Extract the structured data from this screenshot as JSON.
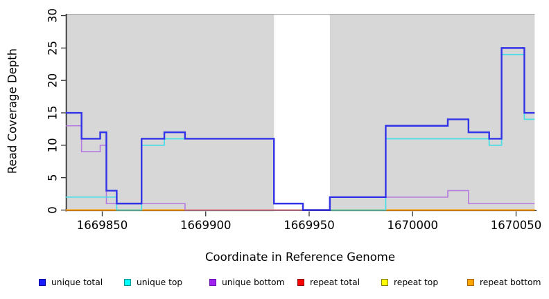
{
  "figure": {
    "x_axis_title": "Coordinate in Reference Genome",
    "y_axis_title": "Read Coverage Depth"
  },
  "chart_data": {
    "type": "line",
    "subtype": "step-coverage-plot",
    "title": "",
    "xlabel": "Coordinate in Reference Genome",
    "ylabel": "Read Coverage Depth",
    "xlim": [
      1669832,
      1670060
    ],
    "ylim": [
      0,
      30
    ],
    "xticks": [
      1669850,
      1669900,
      1669950,
      1670000,
      1670050
    ],
    "yticks": [
      0,
      5,
      10,
      15,
      20,
      25,
      30
    ],
    "grid": false,
    "legend_position": "bottom",
    "panel_color": "#D7D7D7",
    "background_regions": [
      {
        "from": 1669832,
        "to": 1669933,
        "color": "#D7D7D7"
      },
      {
        "from": 1669960,
        "to": 1670059,
        "color": "#D7D7D7"
      }
    ],
    "gap_region": {
      "from": 1669933,
      "to": 1669960,
      "color": "#FFFFFF"
    },
    "x_breaks": [
      1669832,
      1669840,
      1669849,
      1669852,
      1669857,
      1669869,
      1669880,
      1669890,
      1669933,
      1669947,
      1669960,
      1669987,
      1670017,
      1670027,
      1670037,
      1670043,
      1670054,
      1670059
    ],
    "series": [
      {
        "name": "unique total",
        "color": "#3232E8",
        "legend_fill": "#1A1AFF",
        "legend_border": "#000099",
        "values": [
          15,
          11,
          12,
          3,
          1,
          11,
          12,
          11,
          1,
          0,
          2,
          13,
          14,
          12,
          11,
          25,
          15
        ]
      },
      {
        "name": "unique top",
        "color": "#4ADEE6",
        "legend_fill": "#00FFFF",
        "legend_border": "#0E8F8F",
        "values": [
          2,
          2,
          2,
          2,
          0,
          10,
          11,
          11,
          1,
          0,
          0,
          11,
          11,
          11,
          10,
          24,
          14
        ]
      },
      {
        "name": "unique bottom",
        "color": "#B679DF",
        "legend_fill": "#A020F0",
        "legend_border": "#6A0AAE",
        "values": [
          13,
          9,
          10,
          1,
          1,
          1,
          1,
          0,
          0,
          0,
          2,
          2,
          3,
          1,
          1,
          1,
          1
        ]
      },
      {
        "name": "repeat total",
        "color": "#CC2222",
        "legend_fill": "#FF0000",
        "legend_border": "#8B0000",
        "values": [
          0,
          0,
          0,
          0,
          0,
          0,
          0,
          0,
          0,
          0,
          0,
          0,
          0,
          0,
          0,
          0,
          0
        ]
      },
      {
        "name": "repeat top",
        "color": "#F5F500",
        "legend_fill": "#FFFF00",
        "legend_border": "#857F00",
        "values": [
          0,
          0,
          0,
          0,
          0,
          0,
          0,
          0,
          0,
          0,
          0,
          0,
          0,
          0,
          0,
          0,
          0
        ]
      },
      {
        "name": "repeat bottom",
        "color": "#FF9D12",
        "legend_fill": "#FFA500",
        "legend_border": "#B06000",
        "values": [
          0,
          0,
          0,
          0,
          0,
          0,
          0,
          0,
          0,
          0,
          0,
          0,
          0,
          0,
          0,
          0,
          0
        ]
      }
    ]
  }
}
